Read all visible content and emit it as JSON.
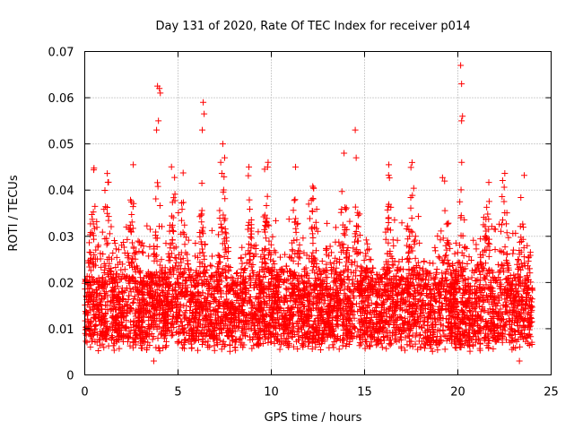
{
  "chart_data": {
    "type": "scatter",
    "title": "Day 131 of 2020, Rate Of TEC Index for receiver p014",
    "xlabel": "GPS time / hours",
    "ylabel": "ROTI / TECUs",
    "xlim": [
      0,
      25
    ],
    "ylim": [
      0,
      0.07
    ],
    "xticks": [
      "0",
      "5",
      "10",
      "15",
      "20",
      "25"
    ],
    "yticks": [
      "0",
      "0.01",
      "0.02",
      "0.03",
      "0.04",
      "0.05",
      "0.06",
      "0.07"
    ],
    "grid": true,
    "marker": "+",
    "color": "#ff0000",
    "series": [
      {
        "name": "ROTI p014",
        "x_range": [
          0,
          24
        ],
        "typical_band": [
          0.005,
          0.02
        ],
        "notable_points": [
          {
            "x": 3.9,
            "y": 0.0625
          },
          {
            "x": 4.0,
            "y": 0.062
          },
          {
            "x": 4.05,
            "y": 0.061
          },
          {
            "x": 3.95,
            "y": 0.055
          },
          {
            "x": 3.85,
            "y": 0.053
          },
          {
            "x": 6.35,
            "y": 0.059
          },
          {
            "x": 6.4,
            "y": 0.0565
          },
          {
            "x": 6.3,
            "y": 0.053
          },
          {
            "x": 7.4,
            "y": 0.05
          },
          {
            "x": 7.5,
            "y": 0.047
          },
          {
            "x": 13.9,
            "y": 0.048
          },
          {
            "x": 14.5,
            "y": 0.053
          },
          {
            "x": 14.55,
            "y": 0.047
          },
          {
            "x": 16.3,
            "y": 0.0455
          },
          {
            "x": 11.3,
            "y": 0.045
          },
          {
            "x": 20.15,
            "y": 0.067
          },
          {
            "x": 20.2,
            "y": 0.063
          },
          {
            "x": 20.25,
            "y": 0.056
          },
          {
            "x": 20.2,
            "y": 0.055
          },
          {
            "x": 2.6,
            "y": 0.0455
          },
          {
            "x": 8.8,
            "y": 0.045
          },
          {
            "x": 9.8,
            "y": 0.045
          },
          {
            "x": 3.7,
            "y": 0.003
          },
          {
            "x": 23.3,
            "y": 0.003
          }
        ]
      }
    ]
  }
}
